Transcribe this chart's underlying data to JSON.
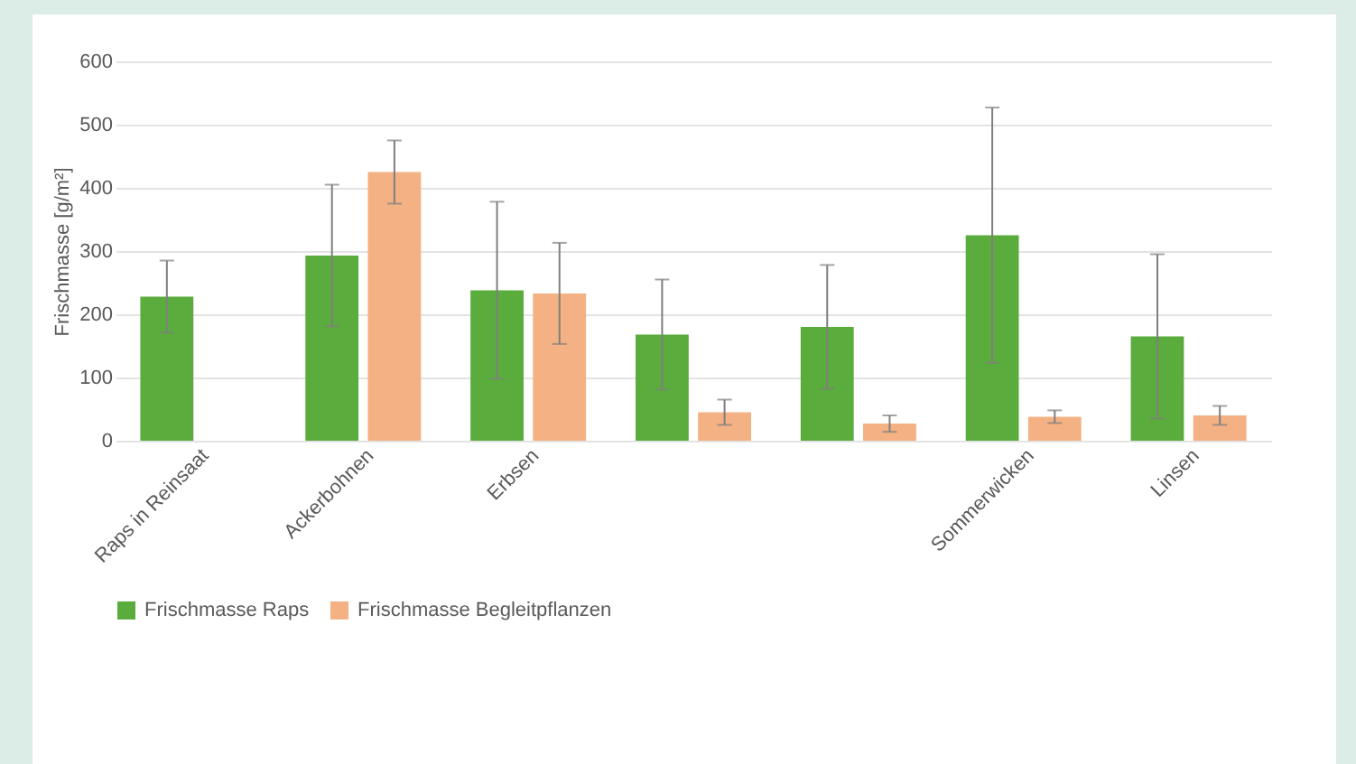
{
  "chart_data": {
    "type": "bar",
    "ylabel": "Frischmasse [g/m²]",
    "categories": [
      "Raps in Reinsaat",
      "Ackerbohnen",
      "Erbsen",
      null,
      null,
      "Sommerwicken",
      "Linsen"
    ],
    "series": [
      {
        "name": "Frischmasse Raps",
        "color": "#5aac3c",
        "values": [
          228,
          293,
          238,
          168,
          180,
          325,
          165
        ],
        "errors": [
          57,
          112,
          140,
          87,
          98,
          202,
          130
        ]
      },
      {
        "name": "Frischmasse Begleitpflanzen",
        "color": "#f4b183",
        "values": [
          null,
          425,
          233,
          45,
          27,
          38,
          40
        ],
        "errors": [
          null,
          50,
          80,
          20,
          13,
          10,
          15
        ]
      }
    ],
    "ylim": [
      0,
      600
    ],
    "yticks": [
      0,
      100,
      200,
      300,
      400,
      500,
      600
    ],
    "grid": "y",
    "legend": "bottom"
  }
}
